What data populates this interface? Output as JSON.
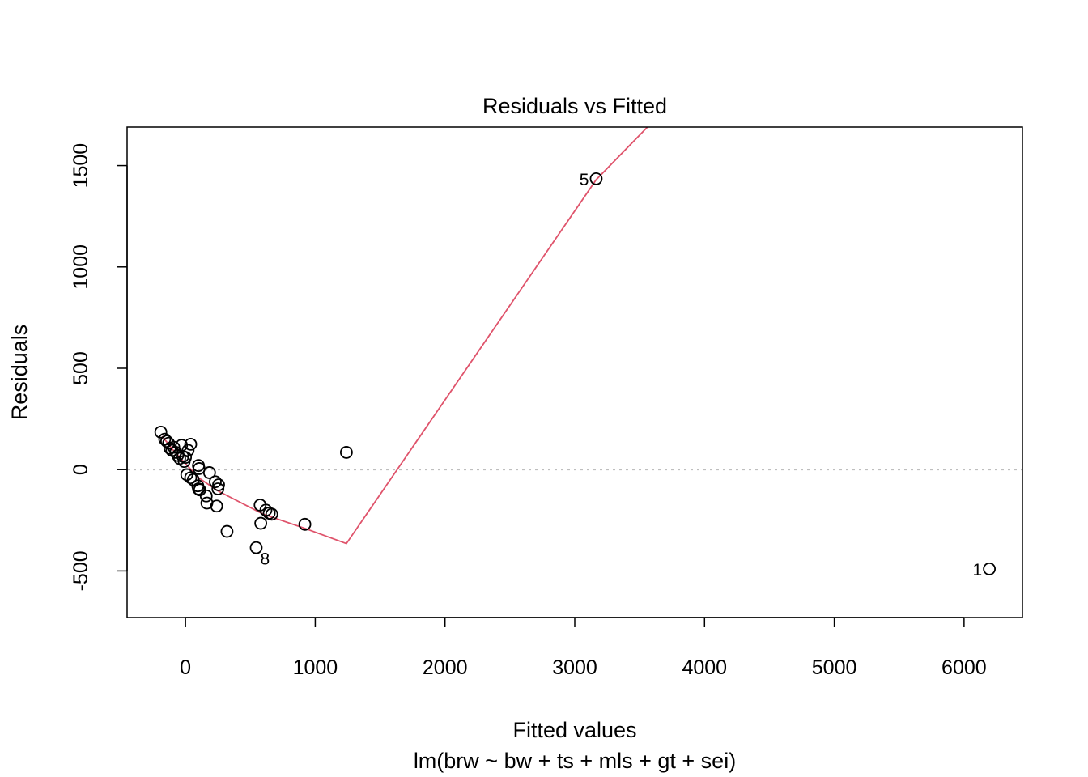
{
  "chart_data": {
    "type": "scatter",
    "title": "Residuals vs Fitted",
    "xlabel": "Fitted values",
    "subtitle": "lm(brw ~ bw + ts + mls + gt + sei)",
    "ylabel": "Residuals",
    "xlim": [
      -450,
      6450
    ],
    "ylim": [
      -730,
      1690
    ],
    "xticks": [
      0,
      1000,
      2000,
      3000,
      4000,
      5000,
      6000
    ],
    "yticks": [
      -500,
      0,
      500,
      1000,
      1500
    ],
    "zero_line": 0,
    "points": [
      {
        "x": 6195,
        "y": -490
      },
      {
        "x": 3165,
        "y": 1435
      },
      {
        "x": 1240,
        "y": 85
      },
      {
        "x": 920,
        "y": -270
      },
      {
        "x": 545,
        "y": -385
      },
      {
        "x": 580,
        "y": -265
      },
      {
        "x": 575,
        "y": -175
      },
      {
        "x": 620,
        "y": -200
      },
      {
        "x": 645,
        "y": -215
      },
      {
        "x": 665,
        "y": -220
      },
      {
        "x": 320,
        "y": -305
      },
      {
        "x": 240,
        "y": -180
      },
      {
        "x": 165,
        "y": -165
      },
      {
        "x": 160,
        "y": -130
      },
      {
        "x": 250,
        "y": -95
      },
      {
        "x": 255,
        "y": -75
      },
      {
        "x": 230,
        "y": -60
      },
      {
        "x": 185,
        "y": -15
      },
      {
        "x": 95,
        "y": -80
      },
      {
        "x": 100,
        "y": -95
      },
      {
        "x": 110,
        "y": -100
      },
      {
        "x": 60,
        "y": -50
      },
      {
        "x": 40,
        "y": -40
      },
      {
        "x": 10,
        "y": -25
      },
      {
        "x": 100,
        "y": 20
      },
      {
        "x": 105,
        "y": 5
      },
      {
        "x": 40,
        "y": 125
      },
      {
        "x": 20,
        "y": 95
      },
      {
        "x": 0,
        "y": 60
      },
      {
        "x": -10,
        "y": 40
      },
      {
        "x": -20,
        "y": 65
      },
      {
        "x": -30,
        "y": 120
      },
      {
        "x": -45,
        "y": 55
      },
      {
        "x": -60,
        "y": 70
      },
      {
        "x": -75,
        "y": 85
      },
      {
        "x": -90,
        "y": 110
      },
      {
        "x": -105,
        "y": 95
      },
      {
        "x": -120,
        "y": 105
      },
      {
        "x": -130,
        "y": 130
      },
      {
        "x": -145,
        "y": 140
      },
      {
        "x": -160,
        "y": 150
      },
      {
        "x": -190,
        "y": 185
      }
    ],
    "smooth_line": [
      {
        "x": -180,
        "y": 165
      },
      {
        "x": -100,
        "y": 100
      },
      {
        "x": 0,
        "y": 30
      },
      {
        "x": 100,
        "y": -40
      },
      {
        "x": 250,
        "y": -105
      },
      {
        "x": 600,
        "y": -220
      },
      {
        "x": 920,
        "y": -290
      },
      {
        "x": 1240,
        "y": -365
      },
      {
        "x": 3165,
        "y": 1430
      },
      {
        "x": 3560,
        "y": 1690
      }
    ],
    "point_labels": [
      {
        "text": "1",
        "x": 6195,
        "y": -490,
        "side": "left"
      },
      {
        "text": "5",
        "x": 3165,
        "y": 1435,
        "side": "left"
      },
      {
        "text": "8",
        "x": 545,
        "y": -385,
        "side": "below-right"
      }
    ]
  }
}
